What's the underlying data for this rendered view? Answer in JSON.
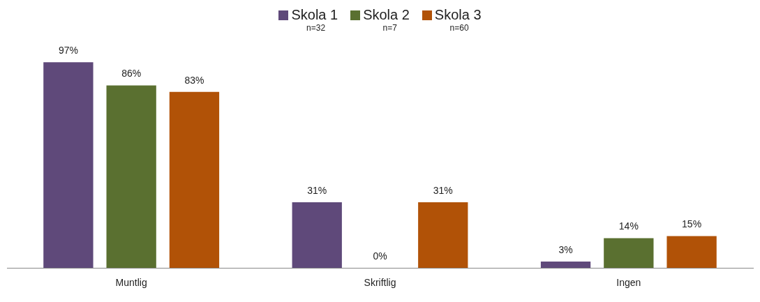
{
  "chart_data": {
    "type": "bar",
    "categories": [
      "Muntlig",
      "Skriftlig",
      "Ingen"
    ],
    "series": [
      {
        "name": "Skola 1",
        "color": "#5f497a",
        "values": [
          97,
          31,
          3
        ],
        "value_labels": [
          "97%",
          "31%",
          "3%"
        ]
      },
      {
        "name": "Skola 2",
        "color": "#5a7030",
        "values": [
          86,
          0,
          14
        ],
        "value_labels": [
          "86%",
          "0%",
          "14%"
        ]
      },
      {
        "name": "Skola 3",
        "color": "#b15207",
        "values": [
          83,
          31,
          15
        ],
        "value_labels": [
          "83%",
          "31%",
          "15%"
        ]
      }
    ],
    "annotations": [
      "n=32",
      "n=7",
      "n=60"
    ],
    "legend": "top",
    "grid": false
  }
}
